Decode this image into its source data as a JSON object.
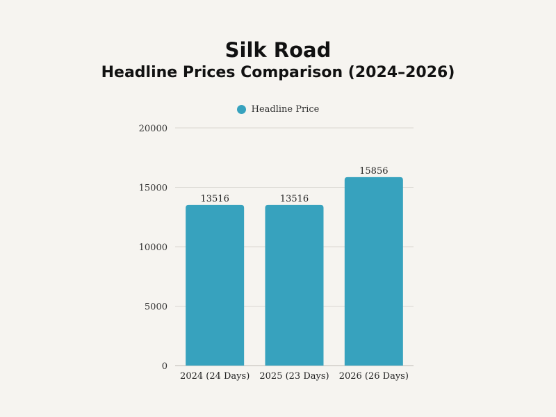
{
  "chart_data": {
    "type": "bar",
    "title": "Silk Road",
    "subtitle": "Headline Prices Comparison (2024–2026)",
    "categories": [
      "2024 (24 Days)",
      "2025 (23 Days)",
      "2026 (26 Days)"
    ],
    "series": [
      {
        "name": "Headline Price",
        "values": [
          13516,
          13516,
          15856
        ]
      }
    ],
    "data_labels": [
      "13516",
      "13516",
      "15856"
    ],
    "ylim": [
      0,
      20000
    ],
    "yticks": [
      0,
      5000,
      10000,
      15000,
      20000
    ],
    "ytick_labels": [
      "0",
      "5000",
      "10000",
      "15000",
      "20000"
    ],
    "grid": true,
    "legend_position": "top-center",
    "bar_color": "#37a2be",
    "grid_color": "#d9d6d1"
  }
}
